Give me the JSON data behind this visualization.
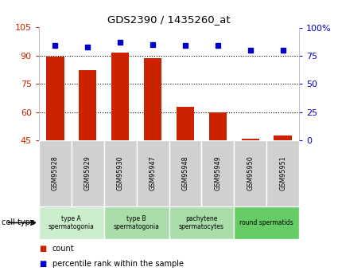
{
  "title": "GDS2390 / 1435260_at",
  "samples": [
    "GSM95928",
    "GSM95929",
    "GSM95930",
    "GSM95947",
    "GSM95948",
    "GSM95949",
    "GSM95950",
    "GSM95951"
  ],
  "count_values": [
    89.5,
    82.5,
    91.5,
    88.5,
    63.0,
    60.0,
    46.0,
    47.5
  ],
  "percentile_values": [
    84,
    83,
    87,
    85,
    84,
    84,
    80,
    80
  ],
  "ylim_left": [
    45,
    105
  ],
  "ylim_right": [
    0,
    100
  ],
  "yticks_left": [
    45,
    60,
    75,
    90,
    105
  ],
  "yticks_right": [
    0,
    25,
    50,
    75,
    100
  ],
  "ytick_labels_left": [
    "45",
    "60",
    "75",
    "90",
    "105"
  ],
  "ytick_labels_right": [
    "0",
    "25",
    "50",
    "75",
    "100%"
  ],
  "bar_color": "#cc2200",
  "dot_color": "#0000cc",
  "bar_width": 0.55,
  "cell_type_groups": [
    {
      "label": "type A\nspermatogonia",
      "start": 0,
      "end": 2,
      "color": "#cceecc"
    },
    {
      "label": "type B\nspermatogonia",
      "start": 2,
      "end": 4,
      "color": "#aaddaa"
    },
    {
      "label": "pachytene\nspermatocytes",
      "start": 4,
      "end": 6,
      "color": "#aaddaa"
    },
    {
      "label": "round spermatids",
      "start": 6,
      "end": 8,
      "color": "#66cc66"
    }
  ],
  "sample_label_bg": "#d0d0d0",
  "legend_count_label": "count",
  "legend_percentile_label": "percentile rank within the sample",
  "cell_type_label": "cell type",
  "background_color": "#ffffff",
  "plot_bg_color": "#ffffff",
  "grid_color": "#000000"
}
